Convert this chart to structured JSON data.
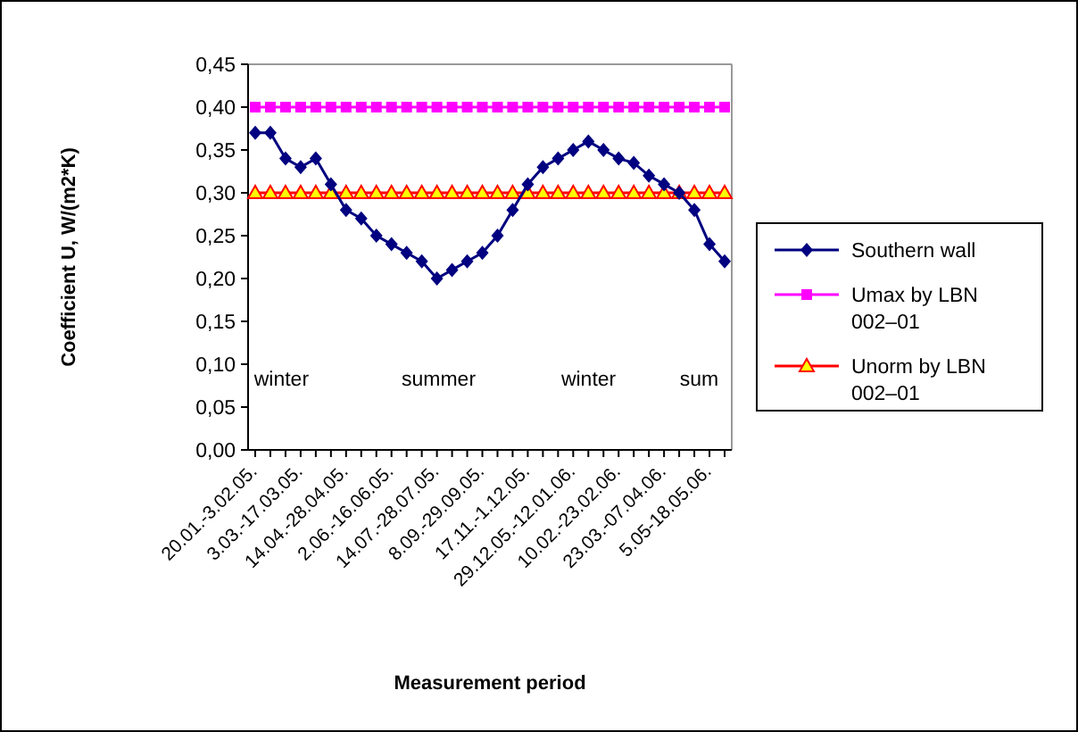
{
  "chart_data": {
    "type": "line",
    "xlabel": "Measurement period",
    "ylabel": "Coefficient U, W/(m2*K)",
    "categories": [
      "20.01.-3.02.05.",
      null,
      null,
      "3.03.-17.03.05.",
      null,
      null,
      "14.04.-28.04.05.",
      null,
      null,
      "2.06.-16.06.05.",
      null,
      null,
      "14.07.-28.07.05.",
      null,
      null,
      "8.09.-29.09.05.",
      null,
      null,
      "17.11.-1.12.05.",
      null,
      null,
      "29.12.05.-12.01.06.",
      null,
      null,
      "10.02.-23.02.06.",
      null,
      null,
      "23.03.-07.04.06.",
      null,
      null,
      "5.05-18.05.06.",
      null
    ],
    "series": [
      {
        "name": "Southern wall",
        "color": "#000080",
        "marker": "diamond",
        "values": [
          0.37,
          0.37,
          0.34,
          0.33,
          0.34,
          0.31,
          0.28,
          0.27,
          0.25,
          0.24,
          0.23,
          0.22,
          0.2,
          0.21,
          0.22,
          0.23,
          0.25,
          0.28,
          0.31,
          0.33,
          0.34,
          0.35,
          0.36,
          0.35,
          0.34,
          0.335,
          0.32,
          0.31,
          0.3,
          0.28,
          0.24,
          0.22
        ]
      },
      {
        "name": "Umax by LBN 002–01",
        "color": "#ff00ff",
        "marker": "square",
        "values": [
          0.4,
          0.4,
          0.4,
          0.4,
          0.4,
          0.4,
          0.4,
          0.4,
          0.4,
          0.4,
          0.4,
          0.4,
          0.4,
          0.4,
          0.4,
          0.4,
          0.4,
          0.4,
          0.4,
          0.4,
          0.4,
          0.4,
          0.4,
          0.4,
          0.4,
          0.4,
          0.4,
          0.4,
          0.4,
          0.4,
          0.4,
          0.4
        ]
      },
      {
        "name": "Unorm by LBN 002–01",
        "color": "#ff0000",
        "marker": "triangle",
        "values": [
          0.3,
          0.3,
          0.3,
          0.3,
          0.3,
          0.3,
          0.3,
          0.3,
          0.3,
          0.3,
          0.3,
          0.3,
          0.3,
          0.3,
          0.3,
          0.3,
          0.3,
          0.3,
          0.3,
          0.3,
          0.3,
          0.3,
          0.3,
          0.3,
          0.3,
          0.3,
          0.3,
          0.3,
          0.3,
          0.3,
          0.3,
          0.3
        ]
      }
    ],
    "ylim": [
      0,
      0.45
    ],
    "yticks": [
      {
        "value": 0,
        "label": "0,00"
      },
      {
        "value": 0.05,
        "label": "0,05"
      },
      {
        "value": 0.1,
        "label": "0,10"
      },
      {
        "value": 0.15,
        "label": "0,15"
      },
      {
        "value": 0.2,
        "label": "0,20"
      },
      {
        "value": 0.25,
        "label": "0,25"
      },
      {
        "value": 0.3,
        "label": "0,30"
      },
      {
        "value": 0.35,
        "label": "0,35"
      },
      {
        "value": 0.4,
        "label": "0,40"
      },
      {
        "value": 0.45,
        "label": "0,45"
      }
    ],
    "annotations": [
      "winter",
      "summer",
      "winter",
      "sum"
    ],
    "grid": false,
    "legend": "right",
    "line_style": "solid"
  }
}
